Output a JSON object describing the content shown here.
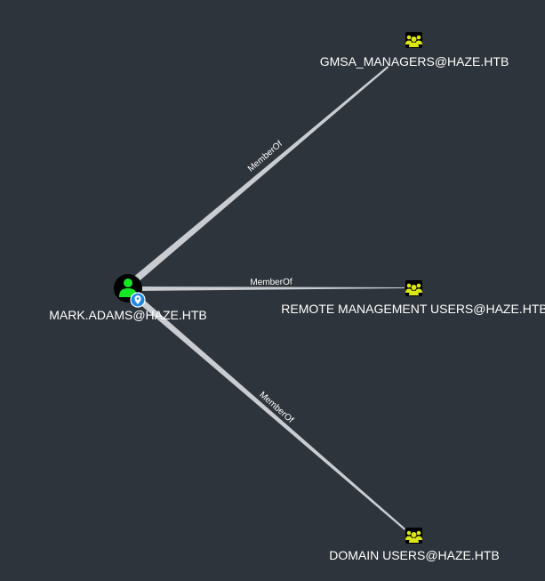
{
  "graph": {
    "background": "#2e343b",
    "edge_color": "#c9cdd1",
    "source": {
      "id": "user",
      "label": "MARK.ADAMS@HAZE.HTB",
      "type": "user",
      "icon": "user-icon",
      "badge_icon": "location-pin-icon",
      "icon_color": "#17e625",
      "badge_color": "#1e88e5"
    },
    "groups": [
      {
        "id": "gmsa-managers",
        "label": "GMSA_MANAGERS@HAZE.HTB",
        "type": "group",
        "icon": "group-icon",
        "icon_color": "#dbe617"
      },
      {
        "id": "remote-management-users",
        "label": "REMOTE MANAGEMENT USERS@HAZE.HTB",
        "type": "group",
        "icon": "group-icon",
        "icon_color": "#dbe617"
      },
      {
        "id": "domain-users",
        "label": "DOMAIN USERS@HAZE.HTB",
        "type": "group",
        "icon": "group-icon",
        "icon_color": "#dbe617"
      }
    ],
    "edges": [
      {
        "from": "user",
        "to": "gmsa-managers",
        "label": "MemberOf"
      },
      {
        "from": "user",
        "to": "remote-management-users",
        "label": "MemberOf"
      },
      {
        "from": "user",
        "to": "domain-users",
        "label": "MemberOf"
      }
    ]
  }
}
